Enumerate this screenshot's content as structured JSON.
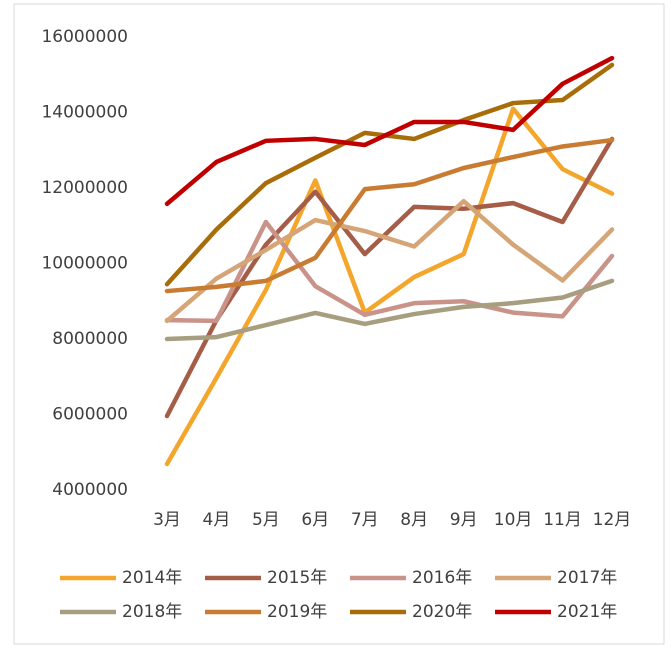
{
  "chart_data": {
    "type": "line",
    "categories": [
      "3月",
      "4月",
      "5月",
      "6月",
      "7月",
      "8月",
      "9月",
      "10月",
      "11月",
      "12月"
    ],
    "ylim": [
      4000000,
      16000000
    ],
    "yticks": [
      4000000,
      6000000,
      8000000,
      10000000,
      12000000,
      14000000,
      16000000
    ],
    "grid": false,
    "legend": "bottom",
    "series": [
      {
        "name": "2014年",
        "color": "#f4a52c",
        "values": [
          4690000,
          6970000,
          9300000,
          12200000,
          8700000,
          9640000,
          10250000,
          14100000,
          12500000,
          11850000
        ]
      },
      {
        "name": "2015年",
        "color": "#a65d47",
        "values": [
          5960000,
          8500000,
          10500000,
          11900000,
          10250000,
          11500000,
          11450000,
          11600000,
          11100000,
          13300000
        ]
      },
      {
        "name": "2016年",
        "color": "#c9938a",
        "values": [
          8500000,
          8480000,
          11100000,
          9400000,
          8640000,
          8950000,
          9000000,
          8700000,
          8600000,
          10200000
        ]
      },
      {
        "name": "2017年",
        "color": "#d5a577",
        "values": [
          8480000,
          9600000,
          10360000,
          11150000,
          10860000,
          10450000,
          11650000,
          10500000,
          9550000,
          10900000
        ]
      },
      {
        "name": "2018年",
        "color": "#a69e7e",
        "values": [
          8000000,
          8050000,
          8370000,
          8690000,
          8400000,
          8660000,
          8850000,
          8950000,
          9100000,
          9540000
        ]
      },
      {
        "name": "2019年",
        "color": "#c97b32",
        "values": [
          9270000,
          9380000,
          9540000,
          10150000,
          11970000,
          12100000,
          12530000,
          12820000,
          13100000,
          13270000
        ]
      },
      {
        "name": "2020年",
        "color": "#a86c08",
        "values": [
          9450000,
          10900000,
          12130000,
          12800000,
          13460000,
          13300000,
          13800000,
          14250000,
          14330000,
          15260000
        ]
      },
      {
        "name": "2021年",
        "color": "#c00000",
        "values": [
          11580000,
          12690000,
          13250000,
          13300000,
          13140000,
          13750000,
          13750000,
          13540000,
          14760000,
          15440000
        ]
      }
    ]
  }
}
